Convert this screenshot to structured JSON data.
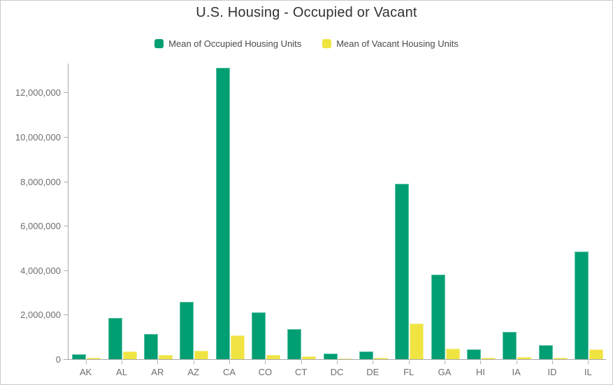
{
  "title": "U.S. Housing - Occupied or Vacant",
  "colors": {
    "occupied_fill": "#009E73",
    "occupied_stroke": "#5fc6a8",
    "vacant_fill": "#F0E442",
    "vacant_stroke": "#f5ee90",
    "axis_line": "#a9a9a9",
    "tick_mark": "#b0b0b0",
    "tick_label_text": "#6e6e6e",
    "title_text": "#323232",
    "legend_text": "#4a4a4a",
    "frame_border": "#c9c9c9"
  },
  "chart_data": {
    "type": "bar",
    "title": "U.S. Housing - Occupied or Vacant",
    "categories": [
      "AK",
      "AL",
      "AR",
      "AZ",
      "CA",
      "CO",
      "CT",
      "DC",
      "DE",
      "FL",
      "GA",
      "HI",
      "IA",
      "ID",
      "IL"
    ],
    "series": [
      {
        "name": "Mean of Occupied Housing Units",
        "color": "#009E73",
        "values": [
          230000,
          1850000,
          1130000,
          2580000,
          13100000,
          2100000,
          1350000,
          260000,
          340000,
          7900000,
          3800000,
          430000,
          1240000,
          630000,
          4840000
        ]
      },
      {
        "name": "Mean of Vacant Housing Units",
        "color": "#F0E442",
        "values": [
          50000,
          350000,
          180000,
          370000,
          1070000,
          190000,
          120000,
          30000,
          50000,
          1600000,
          460000,
          70000,
          100000,
          55000,
          440000
        ]
      }
    ],
    "xlabel": "",
    "ylabel": "",
    "ylim": [
      0,
      13333333
    ],
    "yticks": [
      0,
      2000000,
      4000000,
      6000000,
      8000000,
      10000000,
      12000000
    ],
    "ytick_labels": [
      "0",
      "2,000,000",
      "4,000,000",
      "6,000,000",
      "8,000,000",
      "10,000,000",
      "12,000,000"
    ],
    "grid": false,
    "legend_position": "top"
  }
}
